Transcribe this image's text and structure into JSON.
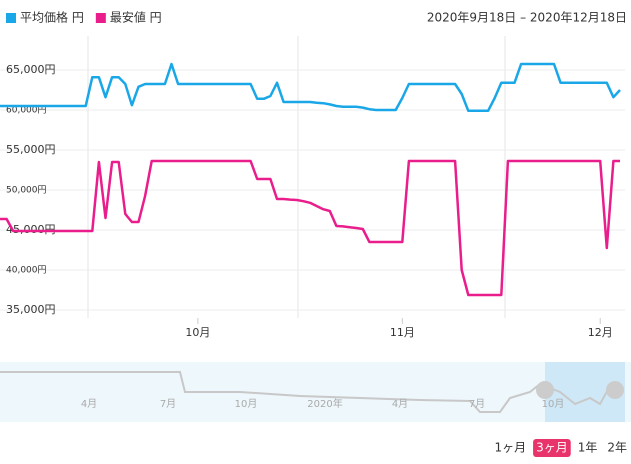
{
  "chart_data": {
    "type": "line",
    "subtitle": "2020年9月18日 – 2020年12月18日",
    "categories": [
      null,
      null,
      null,
      null,
      null,
      null,
      null,
      null,
      null,
      null,
      null,
      null,
      null,
      null,
      null,
      null,
      null,
      null,
      null,
      null,
      null,
      null,
      null,
      null,
      null,
      null,
      null,
      null,
      null,
      null,
      "10月",
      null,
      null,
      null,
      null,
      null,
      null,
      null,
      null,
      null,
      null,
      null,
      null,
      null,
      null,
      null,
      null,
      null,
      null,
      null,
      null,
      null,
      null,
      null,
      null,
      null,
      null,
      null,
      null,
      null,
      null,
      "11月",
      null,
      null,
      null,
      null,
      null,
      null,
      null,
      null,
      null,
      null,
      null,
      null,
      null,
      null,
      null,
      null,
      null,
      null,
      null,
      null,
      null,
      null,
      null,
      null,
      null,
      null,
      null,
      null,
      null,
      "12月",
      null,
      null,
      null
    ],
    "series": [
      {
        "name": "平均価格 円",
        "color": "#1aa7e8",
        "values": [
          60500,
          60500,
          60500,
          60500,
          60500,
          60500,
          60500,
          60500,
          60500,
          60500,
          60500,
          60500,
          60500,
          60500,
          64100,
          64100,
          61600,
          64100,
          64100,
          63250,
          60600,
          62900,
          63250,
          63250,
          63250,
          63250,
          65750,
          63250,
          63250,
          63250,
          63250,
          63250,
          63250,
          63250,
          63250,
          63250,
          63250,
          63250,
          63250,
          61400,
          61400,
          61750,
          63400,
          61000,
          61000,
          61000,
          61000,
          61000,
          60900,
          60850,
          60700,
          60500,
          60400,
          60400,
          60400,
          60300,
          60100,
          60000,
          60000,
          60000,
          60000,
          61500,
          63250,
          63250,
          63250,
          63250,
          63250,
          63250,
          63250,
          63250,
          62000,
          59900,
          59900,
          59900,
          59900,
          61500,
          63400,
          63400,
          63400,
          65750,
          65750,
          65750,
          65750,
          65750,
          65750,
          63400,
          63400,
          63400,
          63400,
          63400,
          63400,
          63400,
          63400,
          61600,
          62500
        ]
      },
      {
        "name": "最安値 円",
        "color": "#e91e8c",
        "values": [
          46375,
          46375,
          44875,
          44875,
          44875,
          44875,
          44875,
          44875,
          44875,
          44875,
          44875,
          44875,
          44875,
          44875,
          44875,
          53500,
          46500,
          53500,
          53500,
          47000,
          46000,
          46000,
          49250,
          53625,
          53625,
          53625,
          53625,
          53625,
          53625,
          53625,
          53625,
          53625,
          53625,
          53625,
          53625,
          53625,
          53625,
          53625,
          53625,
          51375,
          51375,
          51375,
          48875,
          48875,
          48800,
          48750,
          48600,
          48400,
          48000,
          47600,
          47375,
          45500,
          45450,
          45350,
          45250,
          45125,
          43500,
          43500,
          43500,
          43500,
          43500,
          43500,
          53625,
          53625,
          53625,
          53625,
          53625,
          53625,
          53625,
          53625,
          40000,
          36875,
          36875,
          36875,
          36875,
          36875,
          36875,
          53625,
          53625,
          53625,
          53625,
          53625,
          53625,
          53625,
          53625,
          53625,
          53625,
          53625,
          53625,
          53625,
          53625,
          53625,
          42750,
          53625,
          53625
        ]
      }
    ],
    "ylim": [
      34000,
      69250
    ],
    "yticks": [
      {
        "value": 35000,
        "label": "35,000円"
      },
      {
        "value": 40000,
        "label": "40,000円"
      },
      {
        "value": 45000,
        "label": "45,000円"
      },
      {
        "value": 50000,
        "label": "50,000円"
      },
      {
        "value": 55000,
        "label": "55,000円"
      },
      {
        "value": 60000,
        "label": "60,000円"
      },
      {
        "value": 65000,
        "label": "65,000円"
      }
    ],
    "grid": true,
    "navigator_labels": [
      "4月",
      "7月",
      "10月",
      "2020年",
      "4月",
      "7月",
      "10月"
    ],
    "range_buttons": [
      "1ヶ月",
      "3ヶ月",
      "1年",
      "2年"
    ],
    "selected_button": 1
  }
}
